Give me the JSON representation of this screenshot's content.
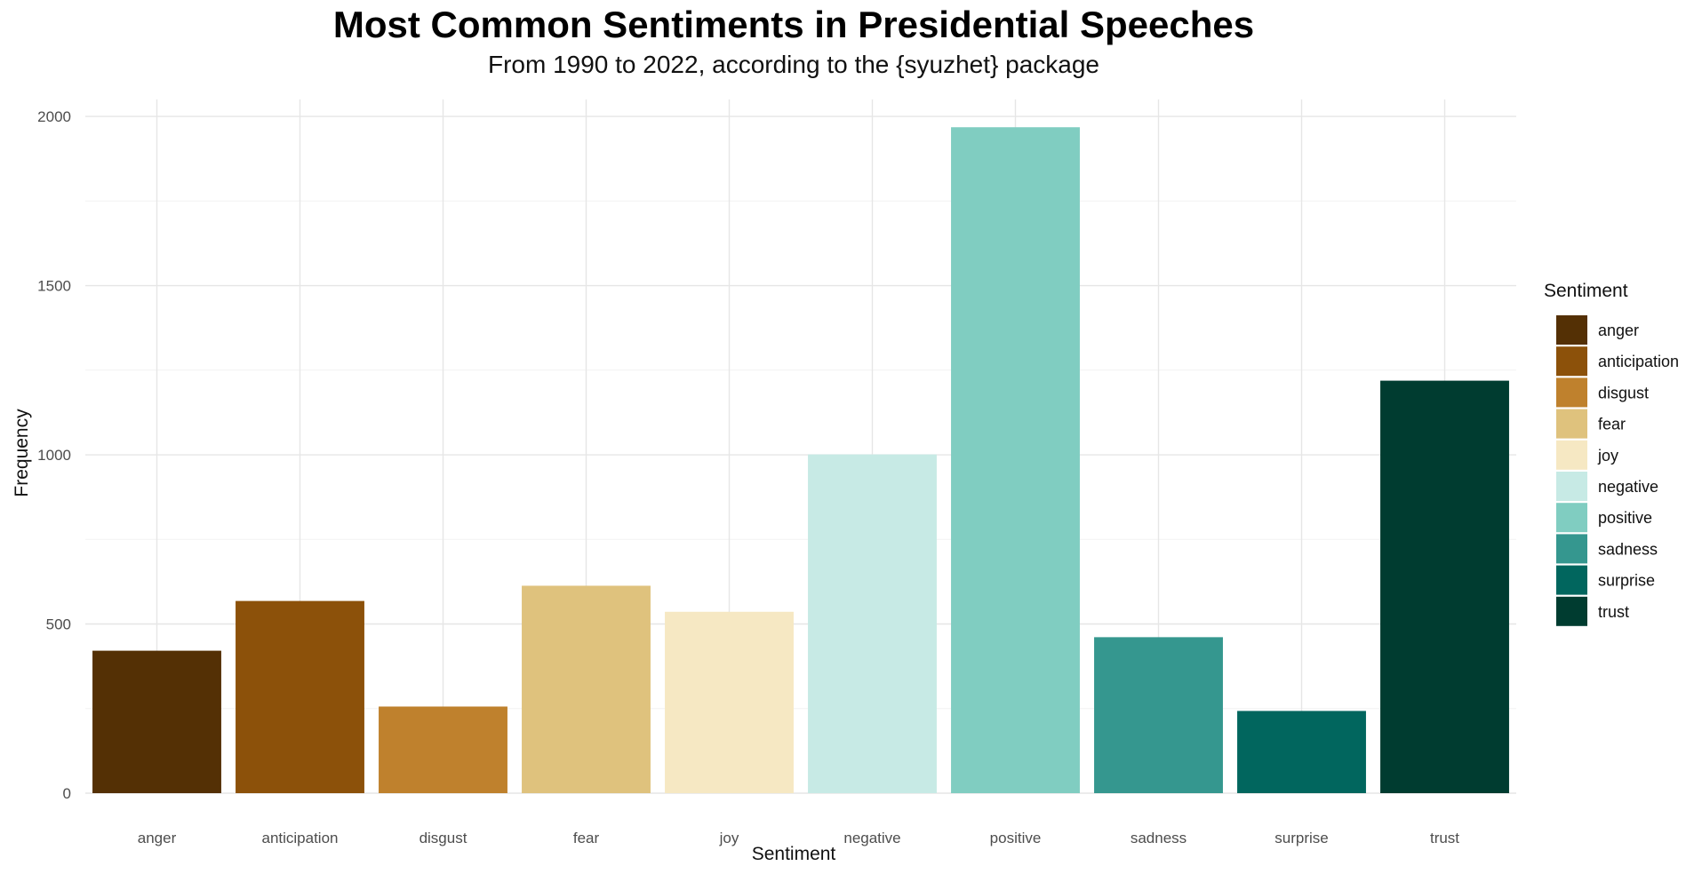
{
  "chart_data": {
    "type": "bar",
    "title": "Most Common Sentiments in Presidential Speeches",
    "subtitle": "From 1990 to 2022, according to the {syuzhet} package",
    "xlabel": "Sentiment",
    "ylabel": "Frequency",
    "ylim": [
      0,
      2050
    ],
    "yticks": [
      0,
      500,
      1000,
      1500,
      2000
    ],
    "grid": true,
    "legend_title": "Sentiment",
    "legend_position": "right",
    "categories": [
      "anger",
      "anticipation",
      "disgust",
      "fear",
      "joy",
      "negative",
      "positive",
      "sadness",
      "surprise",
      "trust"
    ],
    "values": [
      421,
      568,
      256,
      613,
      536,
      1001,
      1968,
      461,
      243,
      1219
    ],
    "colors": [
      "#543005",
      "#8C510A",
      "#BF812D",
      "#DFC27D",
      "#F6E8C3",
      "#C7EAE5",
      "#80CDC1",
      "#35978F",
      "#01665E",
      "#003C30"
    ]
  }
}
